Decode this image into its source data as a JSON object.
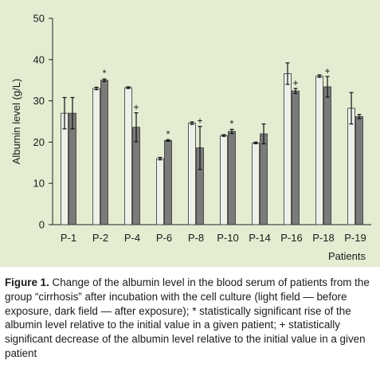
{
  "chart_data": {
    "type": "bar",
    "ylabel": "Albumin level (g/L)",
    "xlabel": "Patients",
    "ylim": [
      0,
      50
    ],
    "yticks": [
      0,
      10,
      20,
      30,
      40,
      50
    ],
    "grid": false,
    "legend": "none",
    "categories": [
      "P-1",
      "P-2",
      "P-4",
      "P-6",
      "P-8",
      "P-10",
      "P-14",
      "P-16",
      "P-18",
      "P-19"
    ],
    "series": [
      {
        "values": [
          27.0,
          33.0,
          33.2,
          16.0,
          24.6,
          21.6,
          19.8,
          36.6,
          36.0,
          28.2
        ],
        "errors": [
          3.8,
          0.3,
          0.2,
          0.3,
          0.3,
          0.2,
          0.2,
          2.6,
          0.3,
          3.8
        ],
        "color": "#eef0ea"
      },
      {
        "values": [
          27.0,
          35.0,
          23.6,
          20.4,
          18.6,
          22.6,
          22.0,
          32.4,
          33.4,
          26.2
        ],
        "errors": [
          3.8,
          0.3,
          3.5,
          0.2,
          5.2,
          0.5,
          2.4,
          0.6,
          2.5,
          0.5
        ],
        "color": "#7a7a7a"
      }
    ],
    "marks": [
      "",
      "*",
      "+",
      "*",
      "+",
      "*",
      "",
      "+",
      "+",
      ""
    ]
  },
  "caption": {
    "label": "Figure 1.",
    "text": "Change of the albumin level in the blood serum of patients from the group “cirrhosis” after incubation with the cell culture (light field — before exposure, dark field — after exposure); * statistically significant rise of the albumin level relative to the initial value in a given patient; + statistically significant decrease of the albumin level relative to the initial value in a given patient"
  }
}
